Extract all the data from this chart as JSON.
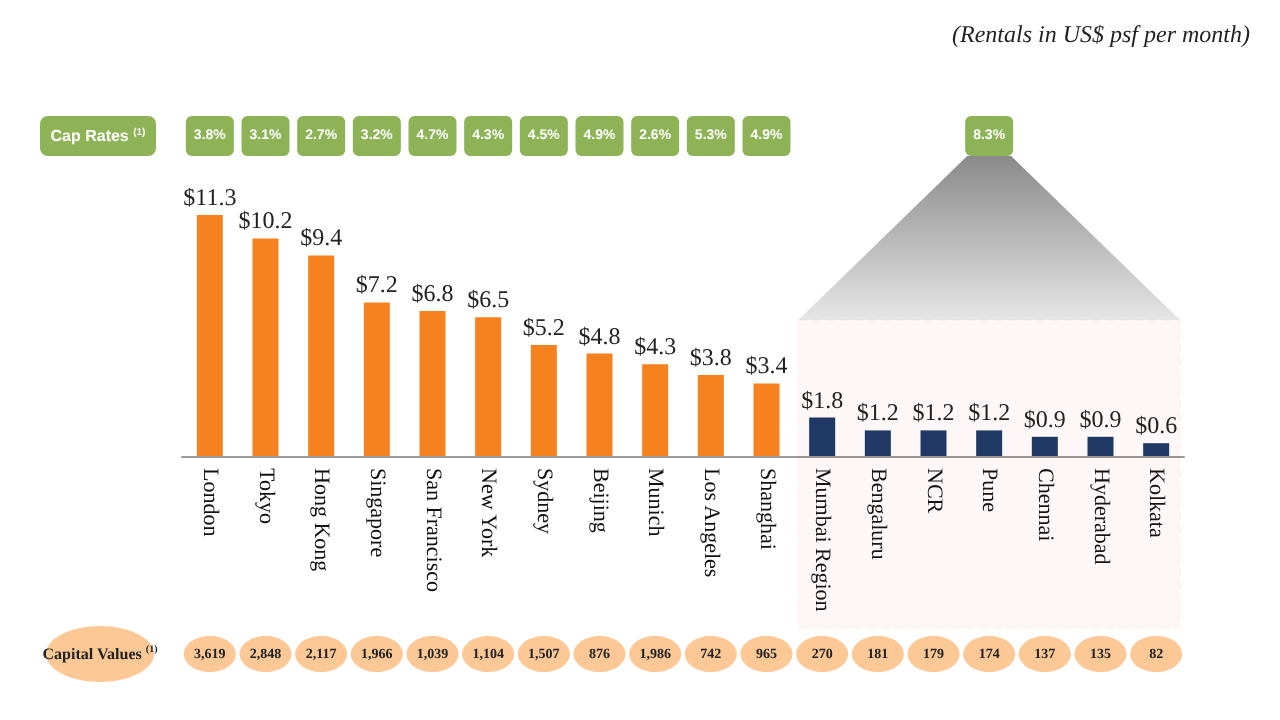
{
  "chart_data": {
    "type": "bar",
    "title": "(Rentals in US$ psf per month)",
    "categories": [
      "London",
      "Tokyo",
      "Hong Kong",
      "Singapore",
      "San Francisco",
      "New York",
      "Sydney",
      "Beijing",
      "Munich",
      "Los Angeles",
      "Shanghai",
      "Mumbai Region",
      "Bengaluru",
      "NCR",
      "Pune",
      "Chennai",
      "Hyderabad",
      "Kolkata"
    ],
    "series": [
      {
        "values": [
          11.3,
          10.2,
          9.4,
          7.2,
          6.8,
          6.5,
          5.2,
          4.8,
          4.3,
          3.8,
          3.4,
          1.8,
          1.2,
          1.2,
          1.2,
          0.9,
          0.9,
          0.6
        ],
        "colors": [
          "#f5821f",
          "#f5821f",
          "#f5821f",
          "#f5821f",
          "#f5821f",
          "#f5821f",
          "#f5821f",
          "#f5821f",
          "#f5821f",
          "#f5821f",
          "#f5821f",
          "#1f3864",
          "#1f3864",
          "#1f3864",
          "#1f3864",
          "#1f3864",
          "#1f3864",
          "#1f3864"
        ],
        "value_labels": [
          "$11.3",
          "$10.2",
          "$9.4",
          "$7.2",
          "$6.8",
          "$6.5",
          "$5.2",
          "$4.8",
          "$4.3",
          "$3.8",
          "$3.4",
          "$1.8",
          "$1.2",
          "$1.2",
          "$1.2",
          "$0.9",
          "$0.9",
          "$0.6"
        ]
      }
    ],
    "bands": [
      {
        "axis": "x",
        "from": "Mumbai Region",
        "to": "Kolkata",
        "color": "#e03c31"
      }
    ],
    "annotations": [
      "Cap Rates $^{(1)}$",
      "3.8%",
      "3.1%",
      "2.7%",
      "3.2%",
      "4.7%",
      "4.3%",
      "4.5%",
      "4.9%",
      "2.6%",
      "5.3%",
      "4.9%",
      "8.3%",
      "Capital Values $^{(1)}$",
      "3,619",
      "2,848",
      "2,117",
      "1,966",
      "1,039",
      "1,104",
      "1,507",
      "876",
      "1,986",
      "742",
      "965",
      "270",
      "181",
      "179",
      "174",
      "137",
      "135",
      "82"
    ],
    "grid": false
  }
}
